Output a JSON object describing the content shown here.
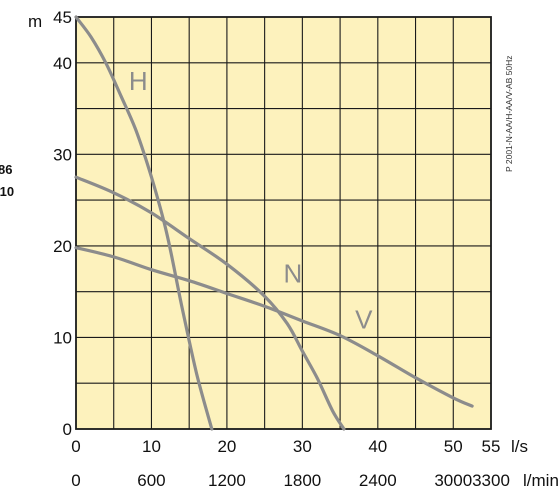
{
  "chart_data": {
    "type": "line",
    "colors": {
      "background": "#fdf2bd",
      "grid": "#1a1a1a",
      "curve": "#8c8c8c"
    },
    "y_unit": "m",
    "x_unit": "l/s",
    "x2_unit": "l/min",
    "ylim": [
      0,
      45
    ],
    "xlim": [
      0,
      55
    ],
    "y_ticks": [
      "45",
      "40",
      "30",
      "20",
      "10",
      "0"
    ],
    "y_tick_values": [
      45,
      40,
      30,
      20,
      10,
      0
    ],
    "x_ticks": [
      "0",
      "10",
      "20",
      "30",
      "40",
      "50",
      "55"
    ],
    "x_tick_values": [
      0,
      10,
      20,
      30,
      40,
      50,
      55
    ],
    "x2_ticks": [
      "0",
      "600",
      "1200",
      "1800",
      "2400",
      "3000",
      "3300"
    ],
    "x2_tick_values": [
      0,
      10,
      20,
      30,
      40,
      50,
      55
    ],
    "grid": true,
    "side_text": [
      "86",
      "/10"
    ],
    "reference": "P 2001-N-AA/H-AA/V-AB 50Hz",
    "series": [
      {
        "name": "H",
        "x": [
          0,
          2,
          4,
          6,
          8,
          10,
          12,
          14,
          16,
          18
        ],
        "y": [
          45,
          42.8,
          39.9,
          36.3,
          32.5,
          27.5,
          21.5,
          13.5,
          6,
          0
        ],
        "label_at": [
          7,
          37
        ]
      },
      {
        "name": "N",
        "x": [
          0,
          5,
          10,
          15,
          20,
          25,
          28,
          30,
          32,
          34,
          35.5
        ],
        "y": [
          27.5,
          25.8,
          23.6,
          20.8,
          18,
          14.5,
          11.5,
          8.5,
          5.5,
          2,
          0
        ],
        "label_at": [
          27.5,
          16
        ]
      },
      {
        "name": "V",
        "x": [
          0,
          5,
          10,
          15,
          20,
          25,
          30,
          35,
          40,
          45,
          50,
          52.5
        ],
        "y": [
          19.8,
          18.8,
          17.4,
          16.2,
          14.8,
          13.4,
          11.8,
          10.2,
          8,
          5.6,
          3.4,
          2.5
        ],
        "label_at": [
          37,
          11
        ]
      }
    ]
  }
}
